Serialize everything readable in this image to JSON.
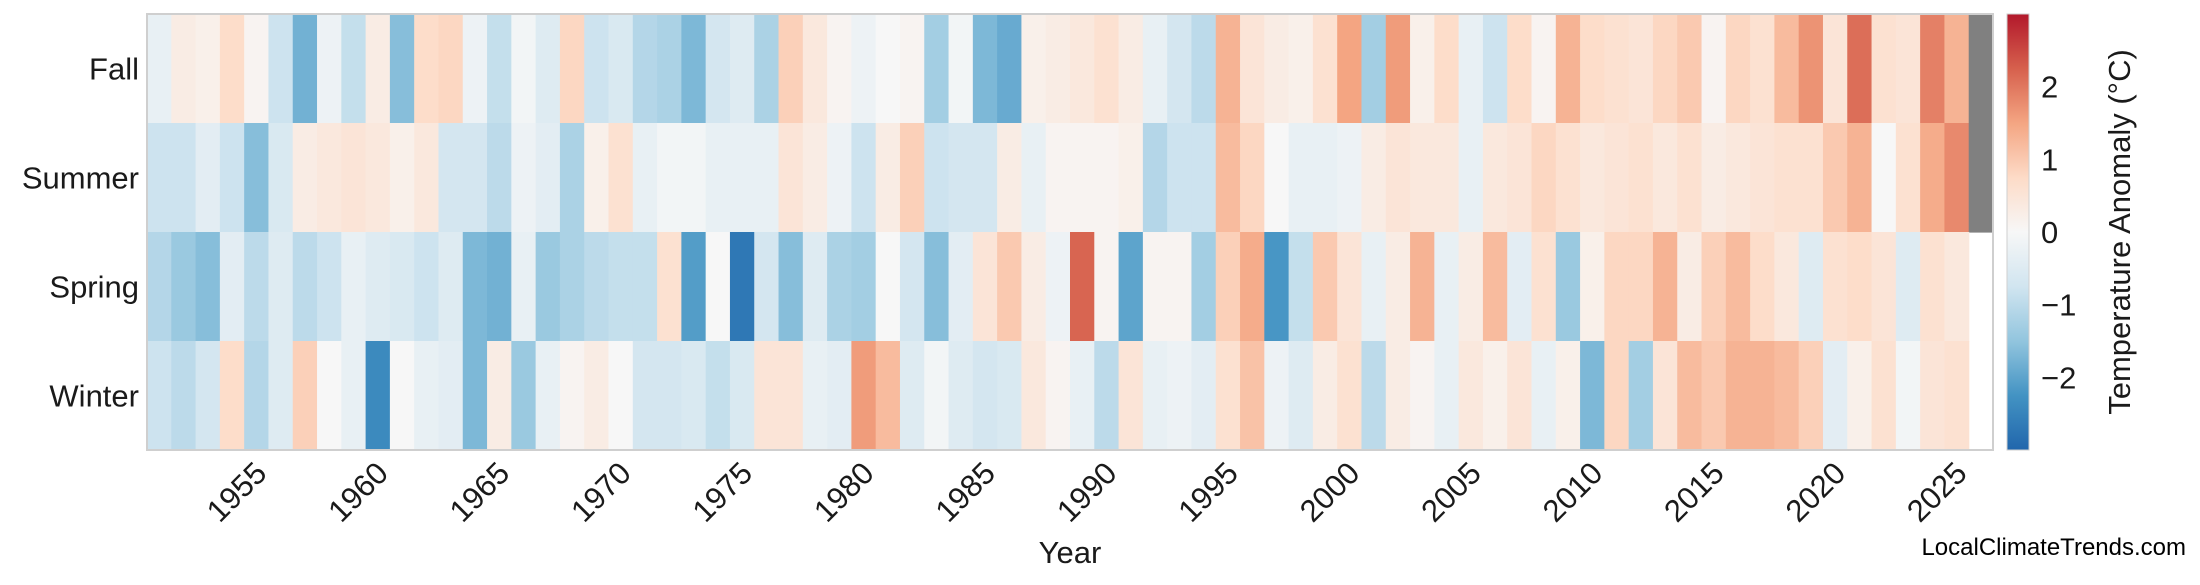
{
  "chart_data": {
    "type": "heatmap",
    "title": "",
    "xlabel": "Year",
    "colorbar_label": "Temperature Anomaly (°C)",
    "years_start": 1950,
    "years_end": 2025,
    "x_ticks": [
      "1955",
      "1960",
      "1965",
      "1970",
      "1975",
      "1980",
      "1985",
      "1990",
      "1995",
      "2000",
      "2005",
      "2010",
      "2015",
      "2020",
      "2025"
    ],
    "colorbar_ticks": [
      "2",
      "1",
      "0",
      "−1",
      "−2"
    ],
    "colorbar_tick_values": [
      2,
      1,
      0,
      -1,
      -2
    ],
    "color_range": [
      -3,
      3
    ],
    "missing_color": "#808080",
    "colormap": [
      "#2166ac",
      "#4393c3",
      "#92c5de",
      "#d1e5f0",
      "#f7f7f7",
      "#fddbc7",
      "#f4a582",
      "#d6604d",
      "#b2182b"
    ],
    "rows": [
      {
        "season": "Fall",
        "values": [
          -0.3,
          0.3,
          0.2,
          0.7,
          0.1,
          -0.8,
          -1.8,
          -0.2,
          -0.9,
          0.3,
          -1.6,
          0.7,
          0.8,
          -0.2,
          -0.9,
          -0.1,
          -0.5,
          0.8,
          -0.8,
          -0.6,
          -1.1,
          -1.2,
          -1.7,
          -0.7,
          -0.5,
          -1.2,
          0.9,
          0.4,
          0.1,
          -0.2,
          0.0,
          0.1,
          -1.3,
          -0.1,
          -1.7,
          -1.9,
          0.2,
          0.3,
          0.4,
          0.6,
          0.3,
          -0.3,
          -0.7,
          -1.0,
          1.3,
          0.5,
          0.3,
          0.2,
          0.6,
          1.5,
          -1.3,
          1.6,
          0.2,
          0.7,
          -0.3,
          -0.8,
          0.7,
          0.1,
          1.3,
          0.7,
          0.6,
          0.5,
          0.8,
          1.0,
          0.1,
          0.8,
          0.6,
          1.2,
          1.7,
          0.5,
          2.1,
          0.6,
          0.5,
          1.9,
          1.3,
          null
        ]
      },
      {
        "season": "Summer",
        "values": [
          -0.8,
          -0.8,
          -0.4,
          -0.8,
          -1.6,
          -0.6,
          0.3,
          0.4,
          0.5,
          0.4,
          0.2,
          0.4,
          -0.7,
          -0.7,
          -1.0,
          -0.2,
          -0.4,
          -1.2,
          0.2,
          0.6,
          -0.3,
          -0.1,
          -0.1,
          -0.3,
          -0.3,
          -0.3,
          0.5,
          0.3,
          -0.2,
          -0.8,
          0.3,
          0.9,
          -0.8,
          -0.7,
          -0.7,
          0.3,
          -0.3,
          0.1,
          0.1,
          0.1,
          0.2,
          -1.1,
          -0.8,
          -0.8,
          1.2,
          0.8,
          0.0,
          -0.3,
          -0.3,
          -0.2,
          0.3,
          0.5,
          0.4,
          0.4,
          -0.3,
          0.4,
          0.5,
          0.8,
          0.6,
          0.4,
          0.5,
          0.6,
          0.4,
          0.6,
          0.3,
          0.4,
          0.5,
          0.6,
          0.6,
          1.0,
          1.3,
          0.0,
          0.6,
          1.4,
          1.8,
          null
        ]
      },
      {
        "season": "Spring",
        "values": [
          -1.1,
          -1.4,
          -1.6,
          -0.4,
          -1.0,
          -0.5,
          -1.0,
          -0.8,
          -0.3,
          -0.5,
          -0.6,
          -0.8,
          -0.5,
          -1.7,
          -1.8,
          -0.3,
          -1.4,
          -1.2,
          -1.0,
          -0.9,
          -0.9,
          0.6,
          -2.1,
          0.0,
          -2.7,
          -0.7,
          -1.6,
          -0.5,
          -1.2,
          -1.3,
          0.0,
          -0.7,
          -1.6,
          -0.4,
          0.5,
          1.0,
          0.3,
          -0.2,
          2.2,
          0.1,
          -2.0,
          0.1,
          0.1,
          -1.3,
          0.9,
          1.4,
          -2.2,
          -0.9,
          1.0,
          0.5,
          -0.3,
          0.3,
          1.3,
          -0.3,
          0.3,
          1.2,
          -0.4,
          0.6,
          -1.4,
          0.2,
          0.8,
          0.8,
          1.3,
          0.3,
          0.9,
          1.2,
          0.7,
          0.4,
          -0.5,
          0.6,
          0.7,
          0.5,
          -0.5,
          0.6,
          0.4
        ]
      },
      {
        "season": "Winter",
        "values": [
          -0.8,
          -1.0,
          -0.7,
          0.7,
          -1.1,
          -0.5,
          0.9,
          0.0,
          -0.3,
          -2.4,
          0.0,
          -0.3,
          -0.4,
          -1.7,
          0.3,
          -1.4,
          -0.3,
          0.1,
          0.3,
          0.0,
          -0.7,
          -0.7,
          -0.6,
          -0.9,
          -0.6,
          0.5,
          0.5,
          -0.3,
          -0.4,
          1.6,
          1.2,
          -0.5,
          -0.1,
          -0.5,
          -0.7,
          -0.6,
          0.4,
          0.1,
          -0.3,
          -1.0,
          0.5,
          -0.3,
          -0.2,
          -0.4,
          0.6,
          1.1,
          -0.2,
          -0.5,
          0.3,
          0.6,
          -1.0,
          0.3,
          0.1,
          -0.3,
          0.4,
          0.2,
          0.5,
          -0.3,
          0.2,
          -1.7,
          0.8,
          -1.3,
          0.5,
          1.2,
          1.0,
          1.3,
          1.3,
          1.2,
          0.9,
          -0.4,
          0.2,
          0.6,
          -0.1,
          0.5,
          0.6
        ]
      }
    ]
  },
  "watermark": "LocalClimateTrends.com"
}
